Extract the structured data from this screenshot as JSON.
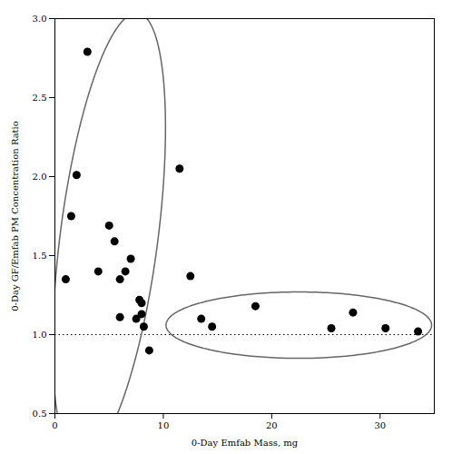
{
  "chart_data": {
    "type": "scatter",
    "x": [
      1.0,
      1.5,
      2.0,
      3.0,
      4.0,
      5.0,
      5.5,
      6.0,
      6.0,
      6.5,
      7.0,
      7.5,
      7.8,
      8.0,
      8.0,
      8.2,
      8.7,
      11.5,
      12.5,
      13.5,
      14.5,
      18.5,
      25.5,
      27.5,
      30.5,
      33.5
    ],
    "values": [
      1.35,
      1.75,
      2.01,
      2.79,
      1.4,
      1.69,
      1.59,
      1.11,
      1.35,
      1.4,
      1.48,
      1.1,
      1.22,
      1.2,
      1.13,
      1.05,
      0.9,
      2.05,
      1.37,
      1.1,
      1.05,
      1.18,
      1.04,
      1.14,
      1.04,
      1.02
    ],
    "color": "#000000",
    "xlabel": "0-Day Emfab Mass, mg",
    "ylabel": "0-Day GF/Emfab PM Concentration Ratio",
    "xlim": [
      0,
      35
    ],
    "ylim": [
      0.5,
      3.0
    ],
    "xticks": [
      0,
      10,
      20,
      30
    ],
    "yticks": [
      0.5,
      {
        "value": 1.0,
        "label": "1.0"
      },
      1.5,
      {
        "value": 2.0,
        "label": "2.0"
      },
      2.5,
      {
        "value": 3.0,
        "label": "3.0"
      }
    ],
    "grid": false,
    "reference_lines": [
      {
        "y": 1.0,
        "color": "#000000",
        "line_style": "dotted"
      }
    ],
    "ellipses": [
      {
        "center_x": 5.0,
        "center_y": 1.62,
        "width": 10.5,
        "height": 2.45,
        "angle": 8,
        "color": "#666666"
      },
      {
        "center_x": 22.5,
        "center_y": 1.06,
        "width": 24.5,
        "height": 0.42,
        "angle": 0,
        "color": "#666666"
      }
    ]
  }
}
